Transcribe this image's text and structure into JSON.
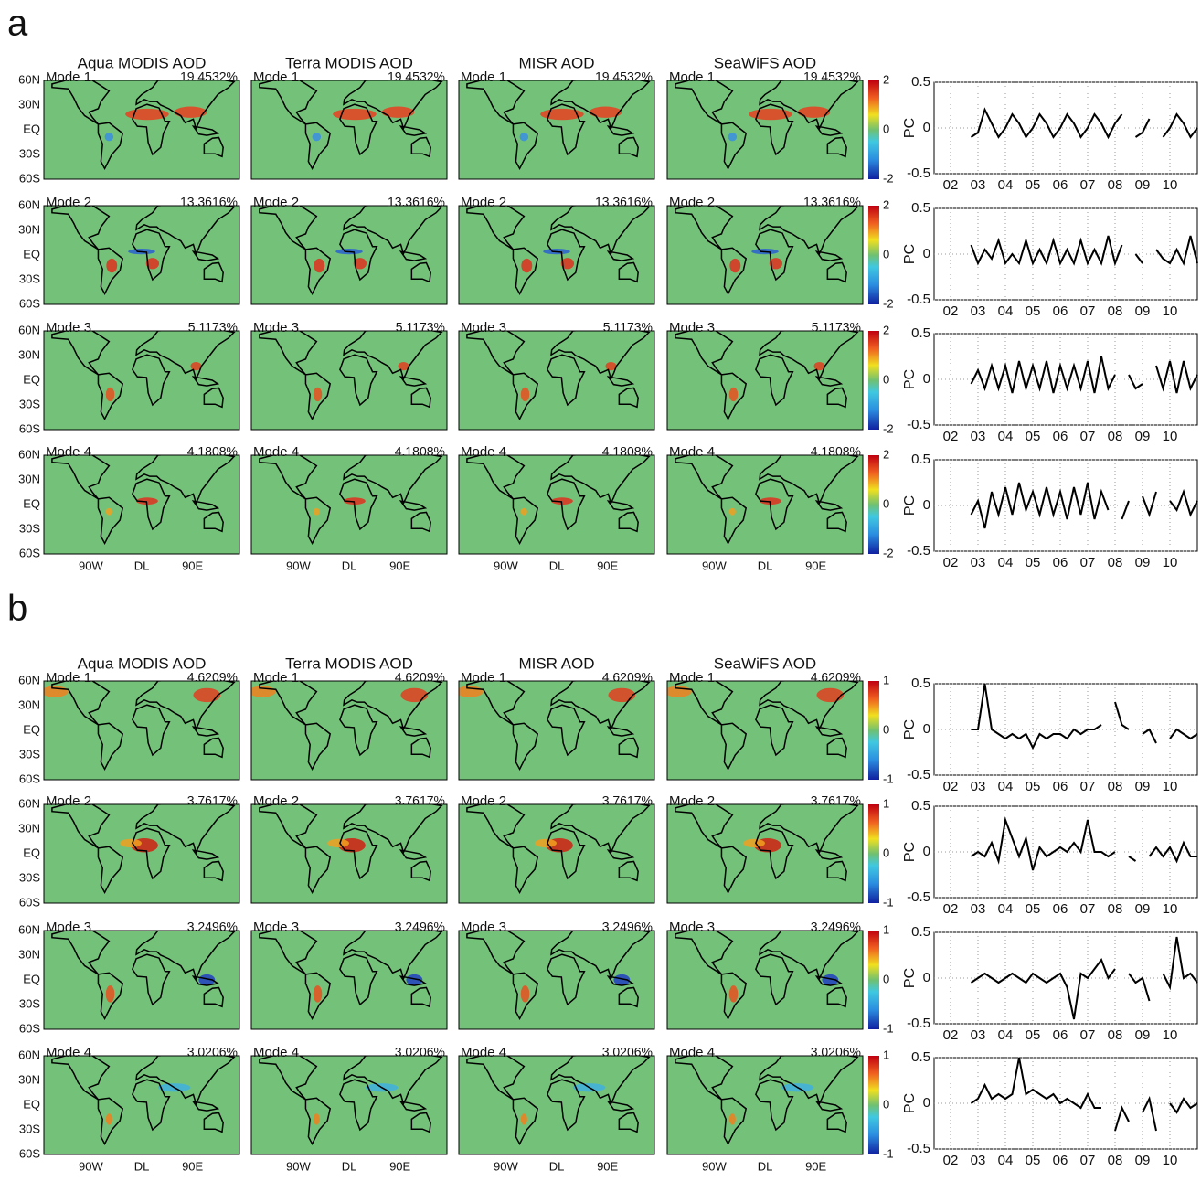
{
  "panels": [
    {
      "label": "a",
      "map_titles": [
        "Aqua MODIS AOD",
        "Terra MODIS AOD",
        "MISR AOD",
        "SeaWiFS AOD"
      ],
      "lat_labels": [
        "60N",
        "30N",
        "EQ",
        "30S",
        "60S"
      ],
      "lon_labels": [
        "90W",
        "DL",
        "90E"
      ],
      "colorbar": {
        "lim": [
          -2,
          2
        ],
        "ticks": [
          2,
          0,
          -2
        ]
      },
      "modes": [
        {
          "name": "Mode 1",
          "variance": "19.4532%"
        },
        {
          "name": "Mode 2",
          "variance": "13.3616%"
        },
        {
          "name": "Mode 3",
          "variance": "5.1173%"
        },
        {
          "name": "Mode 4",
          "variance": "4.1808%"
        }
      ]
    },
    {
      "label": "b",
      "map_titles": [
        "Aqua MODIS AOD",
        "Terra MODIS AOD",
        "MISR AOD",
        "SeaWiFS AOD"
      ],
      "lat_labels": [
        "60N",
        "30N",
        "EQ",
        "30S",
        "60S"
      ],
      "lon_labels": [
        "90W",
        "DL",
        "90E"
      ],
      "colorbar": {
        "lim": [
          -1,
          1
        ],
        "ticks": [
          1,
          0,
          -1
        ]
      },
      "modes": [
        {
          "name": "Mode 1",
          "variance": "4.6209%"
        },
        {
          "name": "Mode 2",
          "variance": "3.7617%"
        },
        {
          "name": "Mode 3",
          "variance": "3.2496%"
        },
        {
          "name": "Mode 4",
          "variance": "3.0206%"
        }
      ]
    }
  ],
  "chart_data": [
    {
      "type": "line",
      "y_label": "PC",
      "color": "#000000",
      "grid": true,
      "xlim": [
        2001.4,
        2011
      ],
      "ylim": [
        -0.5,
        0.5
      ],
      "yticks": [
        -0.5,
        0,
        0.5
      ],
      "xticks": [
        {
          "value": 2002,
          "label": "02"
        },
        {
          "value": 2003,
          "label": "03"
        },
        {
          "value": 2004,
          "label": "04"
        },
        {
          "value": 2005,
          "label": "05"
        },
        {
          "value": 2006,
          "label": "06"
        },
        {
          "value": 2007,
          "label": "07"
        },
        {
          "value": 2008,
          "label": "08"
        },
        {
          "value": 2009,
          "label": "09"
        },
        {
          "value": 2010,
          "label": "10"
        }
      ],
      "x": [
        2002.75,
        2003,
        2003.25,
        2003.5,
        2003.75,
        2004,
        2004.25,
        2004.5,
        2004.75,
        2005,
        2005.25,
        2005.5,
        2005.75,
        2006,
        2006.25,
        2006.5,
        2006.75,
        2007,
        2007.25,
        2007.5,
        2007.75,
        2008,
        2008.25,
        2008.5,
        2008.75,
        2009,
        2009.25,
        2009.5,
        2009.75,
        2010,
        2010.25,
        2010.5,
        2010.75,
        2011
      ],
      "values": [
        -0.1,
        -0.05,
        0.2,
        0.05,
        -0.1,
        0,
        0.15,
        0.05,
        -0.1,
        0,
        0.15,
        0.05,
        -0.1,
        0,
        0.15,
        0.05,
        -0.1,
        0,
        0.15,
        0.05,
        -0.1,
        0.05,
        0.15,
        null,
        -0.1,
        -0.05,
        0.1,
        null,
        -0.1,
        0,
        0.15,
        0.05,
        -0.1,
        0
      ]
    },
    {
      "type": "line",
      "y_label": "PC",
      "color": "#000000",
      "grid": true,
      "xlim": [
        2001.4,
        2011
      ],
      "ylim": [
        -0.5,
        0.5
      ],
      "yticks": [
        -0.5,
        0,
        0.5
      ],
      "xticks": [
        {
          "value": 2002,
          "label": "02"
        },
        {
          "value": 2003,
          "label": "03"
        },
        {
          "value": 2004,
          "label": "04"
        },
        {
          "value": 2005,
          "label": "05"
        },
        {
          "value": 2006,
          "label": "06"
        },
        {
          "value": 2007,
          "label": "07"
        },
        {
          "value": 2008,
          "label": "08"
        },
        {
          "value": 2009,
          "label": "09"
        },
        {
          "value": 2010,
          "label": "10"
        }
      ],
      "x": [
        2002.75,
        2003,
        2003.25,
        2003.5,
        2003.75,
        2004,
        2004.25,
        2004.5,
        2004.75,
        2005,
        2005.25,
        2005.5,
        2005.75,
        2006,
        2006.25,
        2006.5,
        2006.75,
        2007,
        2007.25,
        2007.5,
        2007.75,
        2008,
        2008.25,
        2008.5,
        2008.75,
        2009,
        2009.25,
        2009.5,
        2009.75,
        2010,
        2010.25,
        2010.5,
        2010.75,
        2011
      ],
      "values": [
        0.1,
        -0.1,
        0.05,
        -0.05,
        0.15,
        -0.1,
        0,
        -0.1,
        0.15,
        -0.1,
        0.05,
        -0.1,
        0.15,
        -0.1,
        0.05,
        -0.1,
        0.15,
        -0.1,
        0.05,
        -0.1,
        0.2,
        -0.1,
        0.1,
        null,
        0,
        -0.1,
        null,
        0.05,
        -0.05,
        -0.1,
        0.05,
        -0.1,
        0.2,
        -0.1
      ]
    },
    {
      "type": "line",
      "y_label": "PC",
      "color": "#000000",
      "grid": true,
      "xlim": [
        2001.4,
        2011
      ],
      "ylim": [
        -0.5,
        0.5
      ],
      "yticks": [
        -0.5,
        0,
        0.5
      ],
      "xticks": [
        {
          "value": 2002,
          "label": "02"
        },
        {
          "value": 2003,
          "label": "03"
        },
        {
          "value": 2004,
          "label": "04"
        },
        {
          "value": 2005,
          "label": "05"
        },
        {
          "value": 2006,
          "label": "06"
        },
        {
          "value": 2007,
          "label": "07"
        },
        {
          "value": 2008,
          "label": "08"
        },
        {
          "value": 2009,
          "label": "09"
        },
        {
          "value": 2010,
          "label": "10"
        }
      ],
      "x": [
        2002.75,
        2003,
        2003.25,
        2003.5,
        2003.75,
        2004,
        2004.25,
        2004.5,
        2004.75,
        2005,
        2005.25,
        2005.5,
        2005.75,
        2006,
        2006.25,
        2006.5,
        2006.75,
        2007,
        2007.25,
        2007.5,
        2007.75,
        2008,
        2008.25,
        2008.5,
        2008.75,
        2009,
        2009.25,
        2009.5,
        2009.75,
        2010,
        2010.25,
        2010.5,
        2010.75,
        2011
      ],
      "values": [
        -0.05,
        0.1,
        -0.1,
        0.15,
        -0.1,
        0.15,
        -0.15,
        0.2,
        -0.1,
        0.15,
        -0.1,
        0.2,
        -0.15,
        0.15,
        -0.1,
        0.15,
        -0.1,
        0.2,
        -0.15,
        0.25,
        -0.1,
        0.05,
        null,
        0.05,
        -0.1,
        -0.05,
        null,
        0.15,
        -0.1,
        0.2,
        -0.15,
        0.2,
        -0.1,
        0.05
      ]
    },
    {
      "type": "line",
      "y_label": "PC",
      "color": "#000000",
      "grid": true,
      "xlim": [
        2001.4,
        2011
      ],
      "ylim": [
        -0.5,
        0.5
      ],
      "yticks": [
        -0.5,
        0,
        0.5
      ],
      "xticks": [
        {
          "value": 2002,
          "label": "02"
        },
        {
          "value": 2003,
          "label": "03"
        },
        {
          "value": 2004,
          "label": "04"
        },
        {
          "value": 2005,
          "label": "05"
        },
        {
          "value": 2006,
          "label": "06"
        },
        {
          "value": 2007,
          "label": "07"
        },
        {
          "value": 2008,
          "label": "08"
        },
        {
          "value": 2009,
          "label": "09"
        },
        {
          "value": 2010,
          "label": "10"
        }
      ],
      "x": [
        2002.75,
        2003,
        2003.25,
        2003.5,
        2003.75,
        2004,
        2004.25,
        2004.5,
        2004.75,
        2005,
        2005.25,
        2005.5,
        2005.75,
        2006,
        2006.25,
        2006.5,
        2006.75,
        2007,
        2007.25,
        2007.5,
        2007.75,
        2008,
        2008.25,
        2008.5,
        2008.75,
        2009,
        2009.25,
        2009.5,
        2009.75,
        2010,
        2010.25,
        2010.5,
        2010.75,
        2011
      ],
      "values": [
        -0.1,
        0.05,
        -0.25,
        0.15,
        -0.1,
        0.2,
        -0.1,
        0.25,
        -0.05,
        0.15,
        -0.1,
        0.2,
        -0.1,
        0.15,
        -0.15,
        0.2,
        -0.1,
        0.25,
        -0.15,
        0.15,
        -0.05,
        null,
        -0.15,
        0.05,
        null,
        0.1,
        -0.1,
        0.15,
        null,
        0.05,
        -0.05,
        0.15,
        -0.1,
        0.05
      ]
    },
    {
      "type": "line",
      "y_label": "PC",
      "color": "#000000",
      "grid": true,
      "xlim": [
        2001.4,
        2011
      ],
      "ylim": [
        -0.5,
        0.5
      ],
      "yticks": [
        -0.5,
        0,
        0.5
      ],
      "xticks": [
        {
          "value": 2002,
          "label": "02"
        },
        {
          "value": 2003,
          "label": "03"
        },
        {
          "value": 2004,
          "label": "04"
        },
        {
          "value": 2005,
          "label": "05"
        },
        {
          "value": 2006,
          "label": "06"
        },
        {
          "value": 2007,
          "label": "07"
        },
        {
          "value": 2008,
          "label": "08"
        },
        {
          "value": 2009,
          "label": "09"
        },
        {
          "value": 2010,
          "label": "10"
        }
      ],
      "x": [
        2002.75,
        2003,
        2003.25,
        2003.5,
        2003.75,
        2004,
        2004.25,
        2004.5,
        2004.75,
        2005,
        2005.25,
        2005.5,
        2005.75,
        2006,
        2006.25,
        2006.5,
        2006.75,
        2007,
        2007.25,
        2007.5,
        2007.75,
        2008,
        2008.25,
        2008.5,
        2008.75,
        2009,
        2009.25,
        2009.5,
        2009.75,
        2010,
        2010.25,
        2010.5,
        2010.75,
        2011
      ],
      "values": [
        0,
        0,
        0.5,
        0,
        -0.05,
        -0.1,
        -0.05,
        -0.1,
        -0.05,
        -0.2,
        -0.05,
        -0.1,
        -0.05,
        -0.05,
        -0.1,
        0,
        -0.05,
        0,
        0,
        0.05,
        null,
        0.3,
        0.05,
        0,
        null,
        -0.05,
        0,
        -0.15,
        null,
        -0.1,
        0,
        -0.05,
        -0.1,
        -0.05
      ]
    },
    {
      "type": "line",
      "y_label": "PC",
      "color": "#000000",
      "grid": true,
      "xlim": [
        2001.4,
        2011
      ],
      "ylim": [
        -0.5,
        0.5
      ],
      "yticks": [
        -0.5,
        0,
        0.5
      ],
      "xticks": [
        {
          "value": 2002,
          "label": "02"
        },
        {
          "value": 2003,
          "label": "03"
        },
        {
          "value": 2004,
          "label": "04"
        },
        {
          "value": 2005,
          "label": "05"
        },
        {
          "value": 2006,
          "label": "06"
        },
        {
          "value": 2007,
          "label": "07"
        },
        {
          "value": 2008,
          "label": "08"
        },
        {
          "value": 2009,
          "label": "09"
        },
        {
          "value": 2010,
          "label": "10"
        }
      ],
      "x": [
        2002.75,
        2003,
        2003.25,
        2003.5,
        2003.75,
        2004,
        2004.25,
        2004.5,
        2004.75,
        2005,
        2005.25,
        2005.5,
        2005.75,
        2006,
        2006.25,
        2006.5,
        2006.75,
        2007,
        2007.25,
        2007.5,
        2007.75,
        2008,
        2008.25,
        2008.5,
        2008.75,
        2009,
        2009.25,
        2009.5,
        2009.75,
        2010,
        2010.25,
        2010.5,
        2010.75,
        2011
      ],
      "values": [
        -0.05,
        0,
        -0.05,
        0.1,
        -0.1,
        0.35,
        0.15,
        -0.05,
        0.15,
        -0.2,
        0.05,
        -0.05,
        0,
        0.05,
        0,
        0.1,
        0,
        0.35,
        0,
        0,
        -0.05,
        0,
        null,
        -0.05,
        -0.1,
        null,
        -0.05,
        0.05,
        -0.05,
        0.05,
        -0.1,
        0.1,
        -0.05,
        -0.05
      ]
    },
    {
      "type": "line",
      "y_label": "PC",
      "color": "#000000",
      "grid": true,
      "xlim": [
        2001.4,
        2011
      ],
      "ylim": [
        -0.5,
        0.5
      ],
      "yticks": [
        -0.5,
        0,
        0.5
      ],
      "xticks": [
        {
          "value": 2002,
          "label": "02"
        },
        {
          "value": 2003,
          "label": "03"
        },
        {
          "value": 2004,
          "label": "04"
        },
        {
          "value": 2005,
          "label": "05"
        },
        {
          "value": 2006,
          "label": "06"
        },
        {
          "value": 2007,
          "label": "07"
        },
        {
          "value": 2008,
          "label": "08"
        },
        {
          "value": 2009,
          "label": "09"
        },
        {
          "value": 2010,
          "label": "10"
        }
      ],
      "x": [
        2002.75,
        2003,
        2003.25,
        2003.5,
        2003.75,
        2004,
        2004.25,
        2004.5,
        2004.75,
        2005,
        2005.25,
        2005.5,
        2005.75,
        2006,
        2006.25,
        2006.5,
        2006.75,
        2007,
        2007.25,
        2007.5,
        2007.75,
        2008,
        2008.25,
        2008.5,
        2008.75,
        2009,
        2009.25,
        2009.5,
        2009.75,
        2010,
        2010.25,
        2010.5,
        2010.75,
        2011
      ],
      "values": [
        -0.05,
        0,
        0.05,
        0,
        -0.05,
        0,
        0.05,
        0,
        -0.05,
        0.05,
        0,
        -0.05,
        0,
        0.05,
        -0.1,
        -0.45,
        0.05,
        0,
        0.1,
        0.2,
        0,
        0.1,
        null,
        0.05,
        -0.05,
        0,
        -0.25,
        null,
        0.05,
        -0.1,
        0.45,
        0,
        0.05,
        -0.05
      ]
    },
    {
      "type": "line",
      "y_label": "PC",
      "color": "#000000",
      "grid": true,
      "xlim": [
        2001.4,
        2011
      ],
      "ylim": [
        -0.5,
        0.5
      ],
      "yticks": [
        -0.5,
        0,
        0.5
      ],
      "xticks": [
        {
          "value": 2002,
          "label": "02"
        },
        {
          "value": 2003,
          "label": "03"
        },
        {
          "value": 2004,
          "label": "04"
        },
        {
          "value": 2005,
          "label": "05"
        },
        {
          "value": 2006,
          "label": "06"
        },
        {
          "value": 2007,
          "label": "07"
        },
        {
          "value": 2008,
          "label": "08"
        },
        {
          "value": 2009,
          "label": "09"
        },
        {
          "value": 2010,
          "label": "10"
        }
      ],
      "x": [
        2002.75,
        2003,
        2003.25,
        2003.5,
        2003.75,
        2004,
        2004.25,
        2004.5,
        2004.75,
        2005,
        2005.25,
        2005.5,
        2005.75,
        2006,
        2006.25,
        2006.5,
        2006.75,
        2007,
        2007.25,
        2007.5,
        2007.75,
        2008,
        2008.25,
        2008.5,
        2008.75,
        2009,
        2009.25,
        2009.5,
        2009.75,
        2010,
        2010.25,
        2010.5,
        2010.75,
        2011
      ],
      "values": [
        0,
        0.05,
        0.2,
        0.05,
        0.1,
        0.05,
        0.1,
        0.5,
        0.1,
        0.15,
        0.1,
        0.05,
        0.1,
        0,
        0.05,
        0,
        -0.05,
        0.1,
        -0.05,
        -0.05,
        null,
        -0.3,
        -0.05,
        -0.2,
        null,
        -0.1,
        0.05,
        -0.3,
        null,
        0,
        -0.1,
        0.05,
        -0.05,
        0
      ]
    }
  ]
}
